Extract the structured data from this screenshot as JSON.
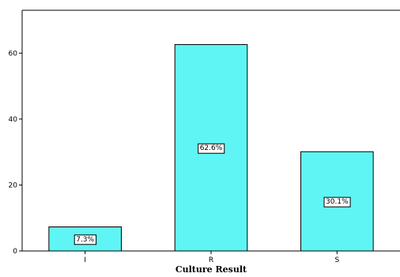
{
  "chart_data": {
    "type": "bar",
    "categories": [
      "I",
      "R",
      "S"
    ],
    "values": [
      7.3,
      62.6,
      30.1
    ],
    "data_labels": [
      "7.3%",
      "62.6%",
      "30.1%"
    ],
    "title": "",
    "xlabel": "Culture Result",
    "ylabel": "",
    "ylim": [
      0,
      73
    ],
    "yticks": [
      0,
      20,
      40,
      60
    ],
    "ytick_labels": [
      "0",
      "20",
      "40",
      "60"
    ],
    "grid": false,
    "legend": "none",
    "colors": {
      "bar_fill": "#5ff5f5",
      "bar_stroke": "#000000",
      "axis": "#000000"
    }
  }
}
